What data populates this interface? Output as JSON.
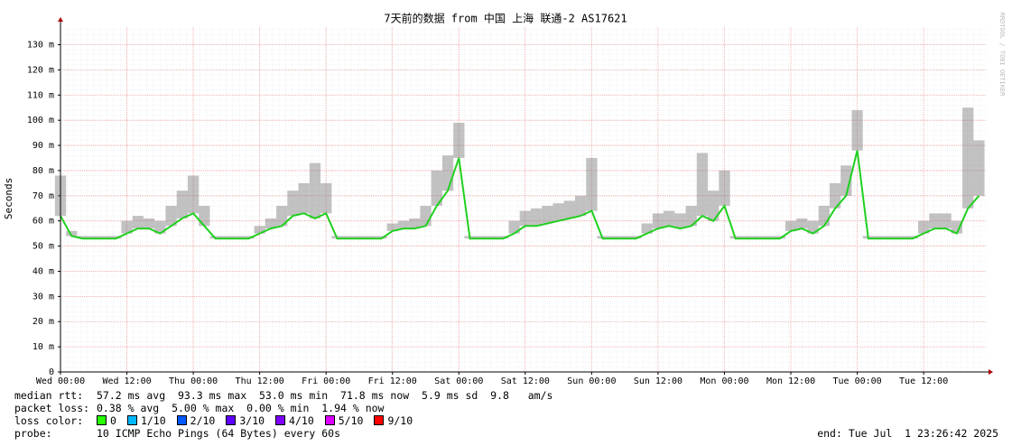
{
  "chart_data": {
    "type": "line",
    "title": "7天前的数据 from 中国 上海 联通-2 AS17621",
    "y_label": "Seconds",
    "side_text": "RRDTOOL / TOBI OETIKER",
    "color": "#20d020",
    "smoke_color": "#777777",
    "grid": true,
    "xlim": [
      0,
      167.4
    ],
    "xticks": [
      {
        "value": 0,
        "label": "Wed 00:00"
      },
      {
        "value": 12,
        "label": "Wed 12:00"
      },
      {
        "value": 24,
        "label": "Thu 00:00"
      },
      {
        "value": 36,
        "label": "Thu 12:00"
      },
      {
        "value": 48,
        "label": "Fri 00:00"
      },
      {
        "value": 60,
        "label": "Fri 12:00"
      },
      {
        "value": 72,
        "label": "Sat 00:00"
      },
      {
        "value": 84,
        "label": "Sat 12:00"
      },
      {
        "value": 96,
        "label": "Sun 00:00"
      },
      {
        "value": 108,
        "label": "Sun 12:00"
      },
      {
        "value": 120,
        "label": "Mon 00:00"
      },
      {
        "value": 132,
        "label": "Mon 12:00"
      },
      {
        "value": 144,
        "label": "Tue 00:00"
      },
      {
        "value": 156,
        "label": "Tue 12:00"
      }
    ],
    "ylim": [
      0,
      0.137
    ],
    "yticks": [
      0,
      {
        "value": 0.01,
        "label": "10 m"
      },
      {
        "value": 0.02,
        "label": "20 m"
      },
      {
        "value": 0.03,
        "label": "30 m"
      },
      {
        "value": 0.04,
        "label": "40 m"
      },
      {
        "value": 0.05,
        "label": "50 m"
      },
      {
        "value": 0.06,
        "label": "60 m"
      },
      {
        "value": 0.07,
        "label": "70 m"
      },
      {
        "value": 0.08,
        "label": "80 m"
      },
      {
        "value": 0.09,
        "label": "90 m"
      },
      {
        "value": 0.1,
        "label": "100 m"
      },
      {
        "value": 0.11,
        "label": "110 m"
      },
      {
        "value": 0.12,
        "label": "120 m"
      },
      {
        "value": 0.13,
        "label": "130 m"
      }
    ],
    "x": [
      0,
      2,
      4,
      6,
      8,
      10,
      12,
      14,
      16,
      18,
      20,
      22,
      24,
      26,
      28,
      30,
      32,
      34,
      36,
      38,
      40,
      42,
      44,
      46,
      48,
      50,
      52,
      54,
      56,
      58,
      60,
      62,
      64,
      66,
      68,
      70,
      72,
      74,
      76,
      78,
      80,
      82,
      84,
      86,
      88,
      90,
      92,
      94,
      96,
      98,
      100,
      102,
      104,
      106,
      108,
      110,
      112,
      114,
      116,
      118,
      120,
      122,
      124,
      126,
      128,
      130,
      132,
      134,
      136,
      138,
      140,
      142,
      144,
      146,
      148,
      150,
      152,
      154,
      156,
      158,
      160,
      162,
      164,
      166
    ],
    "values": [
      0.062,
      0.054,
      0.053,
      0.053,
      0.053,
      0.053,
      0.055,
      0.057,
      0.057,
      0.055,
      0.058,
      0.061,
      0.063,
      0.058,
      0.053,
      0.053,
      0.053,
      0.053,
      0.055,
      0.057,
      0.058,
      0.062,
      0.063,
      0.061,
      0.063,
      0.053,
      0.053,
      0.053,
      0.053,
      0.053,
      0.056,
      0.057,
      0.057,
      0.058,
      0.066,
      0.072,
      0.085,
      0.053,
      0.053,
      0.053,
      0.053,
      0.055,
      0.058,
      0.058,
      0.059,
      0.06,
      0.061,
      0.062,
      0.064,
      0.053,
      0.053,
      0.053,
      0.053,
      0.055,
      0.057,
      0.058,
      0.057,
      0.058,
      0.062,
      0.06,
      0.066,
      0.053,
      0.053,
      0.053,
      0.053,
      0.053,
      0.056,
      0.057,
      0.055,
      0.058,
      0.065,
      0.07,
      0.088,
      0.053,
      0.053,
      0.053,
      0.053,
      0.053,
      0.055,
      0.057,
      0.057,
      0.055,
      0.065,
      0.07
    ],
    "upper": [
      0.078,
      0.056,
      0.054,
      0.054,
      0.054,
      0.054,
      0.06,
      0.062,
      0.061,
      0.06,
      0.066,
      0.072,
      0.078,
      0.066,
      0.054,
      0.054,
      0.054,
      0.054,
      0.058,
      0.061,
      0.066,
      0.072,
      0.075,
      0.083,
      0.075,
      0.054,
      0.054,
      0.054,
      0.054,
      0.054,
      0.059,
      0.06,
      0.061,
      0.066,
      0.08,
      0.086,
      0.099,
      0.054,
      0.054,
      0.054,
      0.054,
      0.06,
      0.064,
      0.065,
      0.066,
      0.067,
      0.068,
      0.07,
      0.085,
      0.054,
      0.054,
      0.054,
      0.054,
      0.059,
      0.063,
      0.064,
      0.063,
      0.066,
      0.087,
      0.072,
      0.08,
      0.054,
      0.054,
      0.054,
      0.054,
      0.054,
      0.06,
      0.061,
      0.06,
      0.066,
      0.075,
      0.082,
      0.104,
      0.054,
      0.054,
      0.054,
      0.054,
      0.054,
      0.06,
      0.063,
      0.063,
      0.06,
      0.105,
      0.092
    ]
  },
  "footer": {
    "stats": [
      {
        "label": "median rtt:",
        "text": "57.2 ms avg  93.3 ms max  53.0 ms min  71.8 ms now  5.9 ms sd  9.8   am/s"
      },
      {
        "label": "packet loss:",
        "text": "0.38 % avg  5.00 % max  0.00 % min  1.94 % now"
      }
    ],
    "loss_label": "loss color:",
    "loss_colors": [
      {
        "label": "0",
        "color": "#26ff00"
      },
      {
        "label": "1/10",
        "color": "#00b8ff"
      },
      {
        "label": "2/10",
        "color": "#0059ff"
      },
      {
        "label": "3/10",
        "color": "#5e00ff"
      },
      {
        "label": "4/10",
        "color": "#7e00ff"
      },
      {
        "label": "5/10",
        "color": "#dd00ff"
      },
      {
        "label": "9/10",
        "color": "#ff0000"
      }
    ],
    "probe_label": "probe:",
    "probe_text": "10 ICMP Echo Pings (64 Bytes) every 60s",
    "end": "end: Tue Jul  1 23:26:42 2025"
  }
}
